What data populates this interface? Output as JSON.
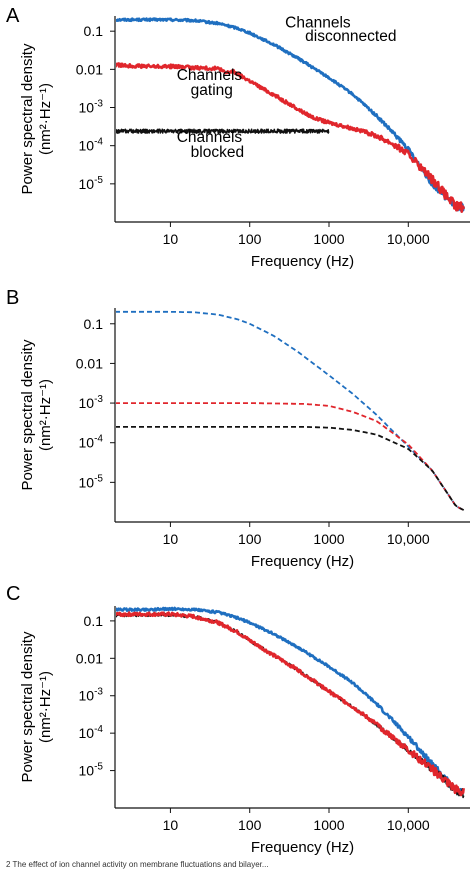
{
  "caption": "2   The effect of ion channel activity on membrane fluctuations and bilayer...",
  "chart_data": [
    {
      "type": "line",
      "panel": "A",
      "xlabel": "Frequency (Hz)",
      "ylabel": "Power spectral density",
      "ylabel_units": "(nm²·Hz⁻¹)",
      "x_scale": "log",
      "y_scale": "log",
      "xlim": [
        2,
        60000
      ],
      "ylim": [
        1e-06,
        0.25
      ],
      "x_ticks": [
        {
          "v": 10,
          "label": "10"
        },
        {
          "v": 100,
          "label": "100"
        },
        {
          "v": 1000,
          "label": "1000"
        },
        {
          "v": 10000,
          "label": "10,000"
        }
      ],
      "y_ticks": [
        {
          "v": 0.1,
          "label": "0.1"
        },
        {
          "v": 0.01,
          "label": "0.01"
        },
        {
          "v": 0.001,
          "label": "10-3"
        },
        {
          "v": 0.0001,
          "label": "10-4"
        },
        {
          "v": 1e-05,
          "label": "10-5"
        }
      ],
      "annotations": [
        {
          "text": "Channels",
          "x": 280,
          "y": 0.125
        },
        {
          "text": "disconnected",
          "x": 500,
          "y": 0.055
        },
        {
          "text": "Channels",
          "x": 12,
          "y": 0.0052
        },
        {
          "text": "gating",
          "x": 18,
          "y": 0.0021
        },
        {
          "text": "Channels",
          "x": 12,
          "y": 0.000125
        },
        {
          "text": "blocked",
          "x": 18,
          "y": 5e-05
        }
      ],
      "series": [
        {
          "color": "#1f6fc0",
          "style": "solid",
          "thick": true,
          "noise": 0.03,
          "x": [
            2,
            5,
            10,
            20,
            40,
            70,
            100,
            200,
            400,
            1000,
            2000,
            4000,
            7000,
            10000,
            20000,
            40000,
            50000
          ],
          "y": [
            0.2,
            0.2,
            0.2,
            0.19,
            0.16,
            0.12,
            0.09,
            0.045,
            0.02,
            0.006,
            0.0022,
            0.0006,
            0.00018,
            8e-05,
            1e-05,
            2.5e-06,
            2.5e-06
          ]
        },
        {
          "color": "#e0262c",
          "style": "solid",
          "thick": true,
          "noise": 0.045,
          "x": [
            2,
            5,
            10,
            20,
            40,
            50,
            60,
            80,
            100,
            150,
            200,
            300,
            500,
            700,
            1000,
            1500,
            2000,
            3000,
            4000,
            6000,
            10000,
            20000,
            40000,
            50000
          ],
          "y": [
            0.013,
            0.012,
            0.012,
            0.011,
            0.0105,
            0.008,
            0.009,
            0.0065,
            0.005,
            0.003,
            0.0022,
            0.0013,
            0.0007,
            0.0005,
            0.0004,
            0.00033,
            0.00028,
            0.00022,
            0.00018,
            0.00012,
            6e-05,
            1.3e-05,
            2.5e-06,
            2.5e-06
          ]
        },
        {
          "color": "#111111",
          "style": "solid",
          "thick": false,
          "noise": 0.05,
          "x": [
            2,
            10,
            100,
            500,
            1000
          ],
          "y": [
            0.00024,
            0.00024,
            0.00024,
            0.00024,
            0.00024
          ]
        }
      ]
    },
    {
      "type": "line",
      "panel": "B",
      "xlabel": "Frequency (Hz)",
      "ylabel": "Power spectral density",
      "ylabel_units": "(nm²·Hz⁻¹)",
      "x_scale": "log",
      "y_scale": "log",
      "xlim": [
        2,
        60000
      ],
      "ylim": [
        1e-06,
        0.25
      ],
      "x_ticks": [
        {
          "v": 10,
          "label": "10"
        },
        {
          "v": 100,
          "label": "100"
        },
        {
          "v": 1000,
          "label": "1000"
        },
        {
          "v": 10000,
          "label": "10,000"
        }
      ],
      "y_ticks": [
        {
          "v": 0.1,
          "label": "0.1"
        },
        {
          "v": 0.01,
          "label": "0.01"
        },
        {
          "v": 0.001,
          "label": "10-3"
        },
        {
          "v": 0.0001,
          "label": "10-4"
        },
        {
          "v": 1e-05,
          "label": "10-5"
        }
      ],
      "annotations": [],
      "series": [
        {
          "color": "#1f6fc0",
          "style": "dashed",
          "thick": false,
          "noise": 0,
          "x": [
            2,
            5,
            10,
            20,
            40,
            70,
            100,
            200,
            400,
            1000,
            2000,
            4000,
            10000,
            20000,
            40000,
            50000
          ],
          "y": [
            0.2,
            0.2,
            0.2,
            0.195,
            0.17,
            0.13,
            0.1,
            0.05,
            0.02,
            0.005,
            0.0017,
            0.0005,
            8e-05,
            2e-05,
            2.5e-06,
            2e-06
          ]
        },
        {
          "color": "#e0262c",
          "style": "dashed",
          "thick": false,
          "noise": 0,
          "x": [
            2,
            10,
            100,
            500,
            1000,
            2000,
            4000,
            10000,
            20000,
            40000,
            50000
          ],
          "y": [
            0.001,
            0.001,
            0.001,
            0.00095,
            0.00085,
            0.0006,
            0.00035,
            9e-05,
            2e-05,
            2.5e-06,
            2e-06
          ]
        },
        {
          "color": "#111111",
          "style": "dashed",
          "thick": false,
          "noise": 0,
          "x": [
            2,
            10,
            100,
            500,
            1000,
            2000,
            4000,
            10000,
            20000,
            40000,
            50000
          ],
          "y": [
            0.00025,
            0.00025,
            0.00025,
            0.00025,
            0.00024,
            0.00021,
            0.00016,
            7e-05,
            2e-05,
            2.5e-06,
            2e-06
          ]
        }
      ]
    },
    {
      "type": "line",
      "panel": "C",
      "xlabel": "Frequency (Hz)",
      "ylabel": "Power spectral density",
      "ylabel_units": "(nm²·Hz⁻¹)",
      "x_scale": "log",
      "y_scale": "log",
      "xlim": [
        2,
        60000
      ],
      "ylim": [
        1e-06,
        0.25
      ],
      "x_ticks": [
        {
          "v": 10,
          "label": "10"
        },
        {
          "v": 100,
          "label": "100"
        },
        {
          "v": 1000,
          "label": "1000"
        },
        {
          "v": 10000,
          "label": "10,000"
        }
      ],
      "y_ticks": [
        {
          "v": 0.1,
          "label": "0.1"
        },
        {
          "v": 0.01,
          "label": "0.01"
        },
        {
          "v": 0.001,
          "label": "10-3"
        },
        {
          "v": 0.0001,
          "label": "10-4"
        },
        {
          "v": 1e-05,
          "label": "10-5"
        }
      ],
      "annotations": [],
      "series": [
        {
          "color": "#1f6fc0",
          "style": "solid",
          "thick": true,
          "noise": 0.03,
          "x": [
            2,
            5,
            10,
            20,
            40,
            70,
            100,
            200,
            400,
            1000,
            2000,
            4000,
            10000,
            20000,
            40000,
            50000
          ],
          "y": [
            0.2,
            0.2,
            0.21,
            0.2,
            0.17,
            0.12,
            0.09,
            0.045,
            0.02,
            0.006,
            0.0022,
            0.0006,
            8e-05,
            1.5e-05,
            3e-06,
            2.5e-06
          ]
        },
        {
          "color": "#111111",
          "style": "solid",
          "thick": false,
          "noise": 0.04,
          "x": [
            2,
            5,
            10,
            20,
            40,
            70,
            100,
            200,
            400,
            1000,
            2000,
            4000,
            10000,
            20000,
            40000,
            50000
          ],
          "y": [
            0.14,
            0.145,
            0.145,
            0.13,
            0.09,
            0.05,
            0.03,
            0.012,
            0.005,
            0.0013,
            0.0005,
            0.00017,
            3.5e-05,
            1.1e-05,
            3e-06,
            2.5e-06
          ]
        },
        {
          "color": "#e0262c",
          "style": "solid",
          "thick": true,
          "noise": 0.045,
          "x": [
            2,
            5,
            10,
            20,
            40,
            70,
            100,
            200,
            400,
            1000,
            2000,
            4000,
            10000,
            20000,
            40000,
            50000
          ],
          "y": [
            0.15,
            0.15,
            0.15,
            0.13,
            0.09,
            0.05,
            0.03,
            0.012,
            0.005,
            0.0013,
            0.0005,
            0.00017,
            3.5e-05,
            1.1e-05,
            3e-06,
            2.5e-06
          ]
        }
      ]
    }
  ]
}
